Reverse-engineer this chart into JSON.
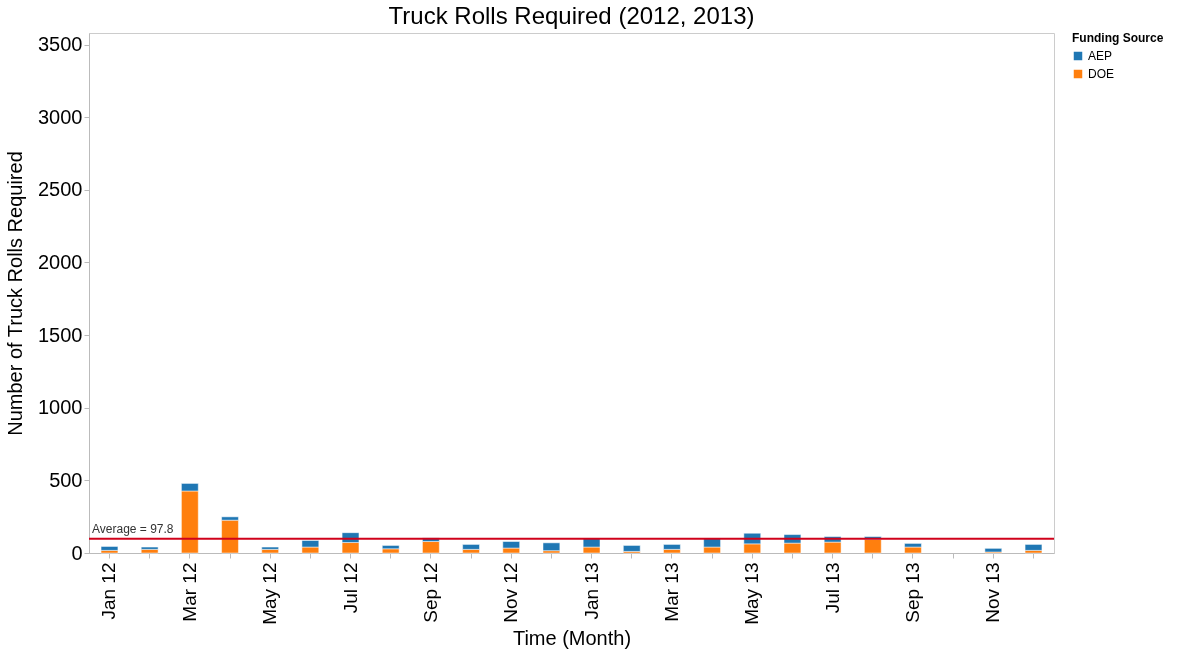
{
  "chart_data": {
    "type": "bar",
    "title": "Truck Rolls Required (2012, 2013)",
    "xlabel": "Time (Month)",
    "ylabel": "Number of Truck Rolls Required",
    "legend_title": "Funding Source",
    "categories": [
      "Jan 12",
      null,
      "Mar 12",
      null,
      "May 12",
      null,
      "Jul 12",
      null,
      "Sep 12",
      null,
      "Nov 12",
      null,
      "Jan 13",
      null,
      "Mar 13",
      null,
      "May 13",
      null,
      "Jul 13",
      null,
      "Sep 13",
      null,
      "Nov 13",
      null
    ],
    "stacked": true,
    "series": [
      {
        "name": "DOE",
        "color": "#ff7f0e",
        "values": [
          18,
          25,
          427,
          226,
          25,
          41,
          72,
          29,
          79,
          25,
          34,
          16,
          41,
          11,
          25,
          41,
          63,
          68,
          75,
          93,
          41,
          null,
          7,
          18
        ]
      },
      {
        "name": "AEP",
        "color": "#1f77b4",
        "values": [
          27,
          16,
          52,
          23,
          16,
          45,
          68,
          23,
          25,
          34,
          45,
          54,
          61,
          41,
          34,
          61,
          73,
          59,
          38,
          20,
          25,
          null,
          25,
          41
        ]
      }
    ],
    "ylim": [
      0,
      3580
    ],
    "yticks": [
      0,
      500,
      1000,
      1500,
      2000,
      2500,
      3000,
      3500
    ],
    "grid": false,
    "legend": "top right",
    "ref_lines": [
      {
        "axis": "y",
        "value": 97.8,
        "label": "Average = 97.8",
        "color": "#d0021b"
      }
    ]
  }
}
